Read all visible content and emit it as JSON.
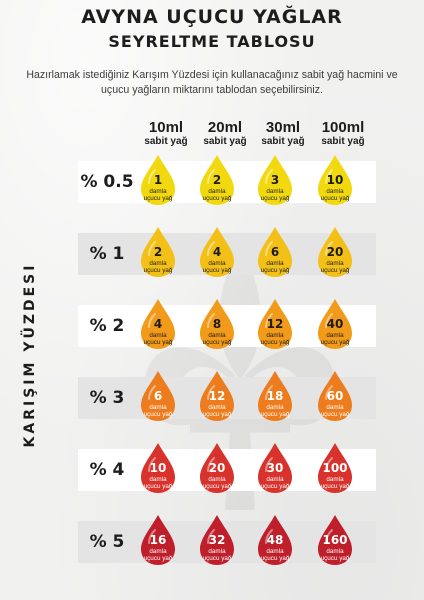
{
  "header": {
    "title_line1": "AVYNA UÇUCU YAĞLAR",
    "title_line2": "SEYRELTME TABLOSU",
    "intro": "Hazırlamak istediğiniz Karışım Yüzdesi için kullanacağınız sabit yağ hacmini ve uçucu yağların miktarını tablodan seçebilirsiniz."
  },
  "columns": [
    {
      "volume": "10ml",
      "sub": "sabit yağ"
    },
    {
      "volume": "20ml",
      "sub": "sabit yağ"
    },
    {
      "volume": "30ml",
      "sub": "sabit yağ"
    },
    {
      "volume": "100ml",
      "sub": "sabit yağ"
    }
  ],
  "side_label": "Karışım Yüzdesi",
  "drop_label_1": "damla",
  "drop_label_2": "uçucu yağ",
  "rows": [
    {
      "percent": "% 0.5",
      "color": "#f2d90f",
      "text_color": "#1d1d1d",
      "values": [
        "1",
        "2",
        "3",
        "10"
      ]
    },
    {
      "percent": "% 1",
      "color": "#f3c017",
      "text_color": "#1d1d1d",
      "values": [
        "2",
        "4",
        "6",
        "20"
      ]
    },
    {
      "percent": "% 2",
      "color": "#f29a1a",
      "text_color": "#1d1d1d",
      "values": [
        "4",
        "8",
        "12",
        "40"
      ]
    },
    {
      "percent": "% 3",
      "color": "#ec7c1d",
      "text_color": "#ffffff",
      "values": [
        "6",
        "12",
        "18",
        "60"
      ]
    },
    {
      "percent": "% 4",
      "color": "#d7322c",
      "text_color": "#ffffff",
      "values": [
        "10",
        "20",
        "30",
        "100"
      ]
    },
    {
      "percent": "% 5",
      "color": "#bf1f2a",
      "text_color": "#ffffff",
      "values": [
        "16",
        "32",
        "48",
        "160"
      ]
    }
  ]
}
